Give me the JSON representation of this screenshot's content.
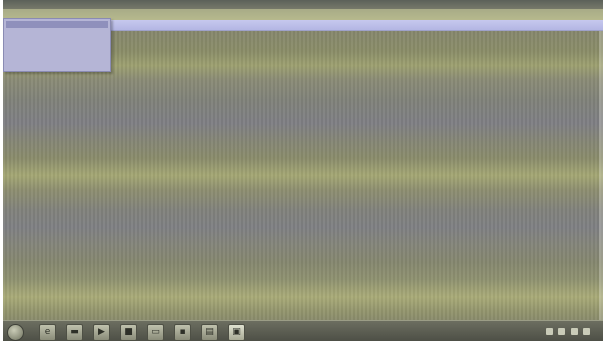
{
  "window": {
    "title": ""
  },
  "menubar": {
    "items": [
      "",
      "",
      "",
      "",
      ""
    ]
  },
  "dropdown": {
    "header": "",
    "items": [
      {
        "label": "",
        "value": ""
      },
      {
        "label": "",
        "value": ""
      },
      {
        "label": "",
        "value": ""
      },
      {
        "label": "",
        "value": ""
      }
    ]
  },
  "taskbar": {
    "icons": [
      {
        "name": "start-orb-icon",
        "glyph": ""
      },
      {
        "name": "browser-icon",
        "glyph": "e"
      },
      {
        "name": "folder-icon",
        "glyph": "▬"
      },
      {
        "name": "media-player-icon",
        "glyph": "▶"
      },
      {
        "name": "app-icon",
        "glyph": "■"
      },
      {
        "name": "window-icon",
        "glyph": "▭"
      },
      {
        "name": "app-icon",
        "glyph": "▪"
      },
      {
        "name": "document-icon",
        "glyph": "▤"
      },
      {
        "name": "active-window-icon",
        "glyph": "▣"
      }
    ],
    "clock": ""
  },
  "colors": {
    "desktop": "#7f806e",
    "menubar": "#b6b98d",
    "infobar": "#c6c8ee",
    "dropdown": "#b5b5d6",
    "taskbar": "#4c4e45"
  }
}
